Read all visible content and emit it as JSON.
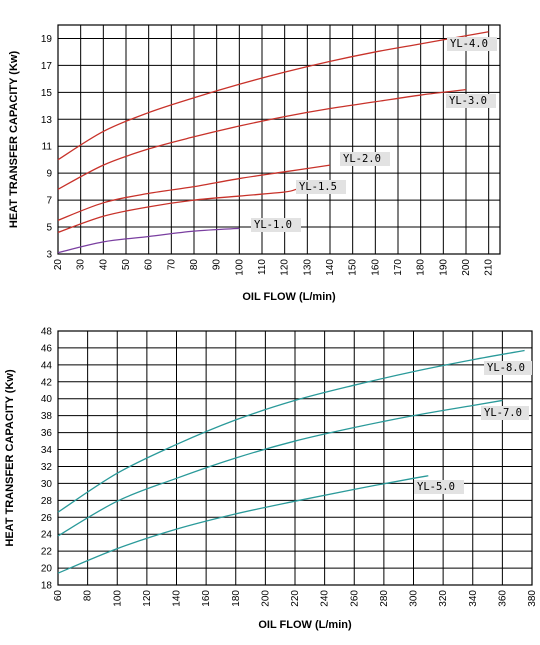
{
  "chart_data": [
    {
      "type": "line",
      "xlabel": "OIL FLOW (L/min)",
      "ylabel": "HEAT TRANSFER CAPACITY (Kw)",
      "xlim": [
        20,
        215
      ],
      "ylim": [
        3,
        20
      ],
      "x_ticks": [
        20,
        30,
        40,
        50,
        60,
        70,
        80,
        90,
        100,
        110,
        120,
        130,
        140,
        150,
        160,
        170,
        180,
        190,
        200,
        210
      ],
      "y_ticks": [
        3,
        5,
        7,
        9,
        11,
        13,
        15,
        17,
        19
      ],
      "grid": true,
      "series": [
        {
          "name": "YL-4.0",
          "color": "#c8322a",
          "x": [
            20,
            40,
            60,
            80,
            100,
            120,
            140,
            160,
            180,
            200,
            210
          ],
          "y": [
            10.0,
            12.1,
            13.5,
            14.6,
            15.6,
            16.5,
            17.3,
            18.0,
            18.6,
            19.2,
            19.5
          ]
        },
        {
          "name": "YL-3.0",
          "color": "#c8322a",
          "x": [
            20,
            40,
            60,
            80,
            100,
            120,
            140,
            160,
            180,
            200
          ],
          "y": [
            7.8,
            9.6,
            10.8,
            11.7,
            12.5,
            13.2,
            13.8,
            14.3,
            14.8,
            15.2
          ]
        },
        {
          "name": "YL-2.0",
          "color": "#c8322a",
          "x": [
            20,
            40,
            60,
            80,
            100,
            120,
            140
          ],
          "y": [
            5.5,
            6.8,
            7.5,
            8.0,
            8.6,
            9.1,
            9.6
          ]
        },
        {
          "name": "YL-1.5",
          "color": "#c8322a",
          "x": [
            20,
            40,
            60,
            80,
            100,
            120,
            125
          ],
          "y": [
            4.6,
            5.8,
            6.5,
            7.0,
            7.3,
            7.6,
            7.8
          ]
        },
        {
          "name": "YL-1.0",
          "color": "#7a3fa0",
          "x": [
            20,
            40,
            60,
            80,
            100
          ],
          "y": [
            3.1,
            3.9,
            4.3,
            4.7,
            4.9
          ]
        }
      ]
    },
    {
      "type": "line",
      "xlabel": "OIL FLOW (L/min)",
      "ylabel": "HEAT TRANSFER CAPACITY (Kw)",
      "xlim": [
        60,
        380
      ],
      "ylim": [
        18,
        48
      ],
      "x_ticks": [
        60,
        80,
        100,
        120,
        140,
        160,
        180,
        200,
        220,
        240,
        260,
        280,
        300,
        320,
        340,
        360,
        380
      ],
      "y_ticks": [
        18,
        20,
        22,
        24,
        26,
        28,
        30,
        32,
        34,
        36,
        38,
        40,
        42,
        44,
        46,
        48
      ],
      "grid": true,
      "series": [
        {
          "name": "YL-8.0",
          "color": "#2a9a9a",
          "x": [
            60,
            100,
            140,
            180,
            220,
            260,
            300,
            340,
            375
          ],
          "y": [
            26.6,
            31.2,
            34.6,
            37.5,
            39.8,
            41.6,
            43.2,
            44.6,
            45.7
          ]
        },
        {
          "name": "YL-7.0",
          "color": "#2a9a9a",
          "x": [
            60,
            100,
            140,
            180,
            220,
            260,
            300,
            340,
            360
          ],
          "y": [
            23.8,
            27.9,
            30.6,
            33.0,
            35.0,
            36.6,
            38.0,
            39.2,
            39.8
          ]
        },
        {
          "name": "YL-5.0",
          "color": "#2a9a9a",
          "x": [
            60,
            100,
            140,
            180,
            220,
            260,
            300,
            310
          ],
          "y": [
            19.4,
            22.3,
            24.6,
            26.4,
            27.9,
            29.3,
            30.6,
            30.9
          ]
        }
      ]
    }
  ]
}
